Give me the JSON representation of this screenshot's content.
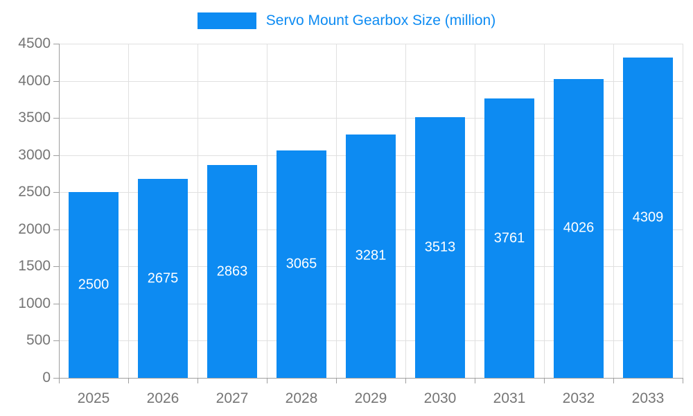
{
  "chart_data": {
    "type": "bar",
    "title": "Servo Mount Gearbox Size (million)",
    "categories": [
      "2025",
      "2026",
      "2027",
      "2028",
      "2029",
      "2030",
      "2031",
      "2032",
      "2033"
    ],
    "values": [
      2500,
      2675,
      2863,
      3065,
      3281,
      3513,
      3761,
      4026,
      4309
    ],
    "xlabel": "",
    "ylabel": "",
    "ylim": [
      0,
      4500
    ],
    "ytick_step": 500,
    "grid": true,
    "legend_position": "top",
    "colors": {
      "bar": "#0d8bf2",
      "legend_text": "#0d8bf2",
      "value_label": "#ffffff",
      "tick_label": "#757575",
      "grid_line": "#e0e0e0",
      "axis_line": "#9e9e9e"
    }
  }
}
